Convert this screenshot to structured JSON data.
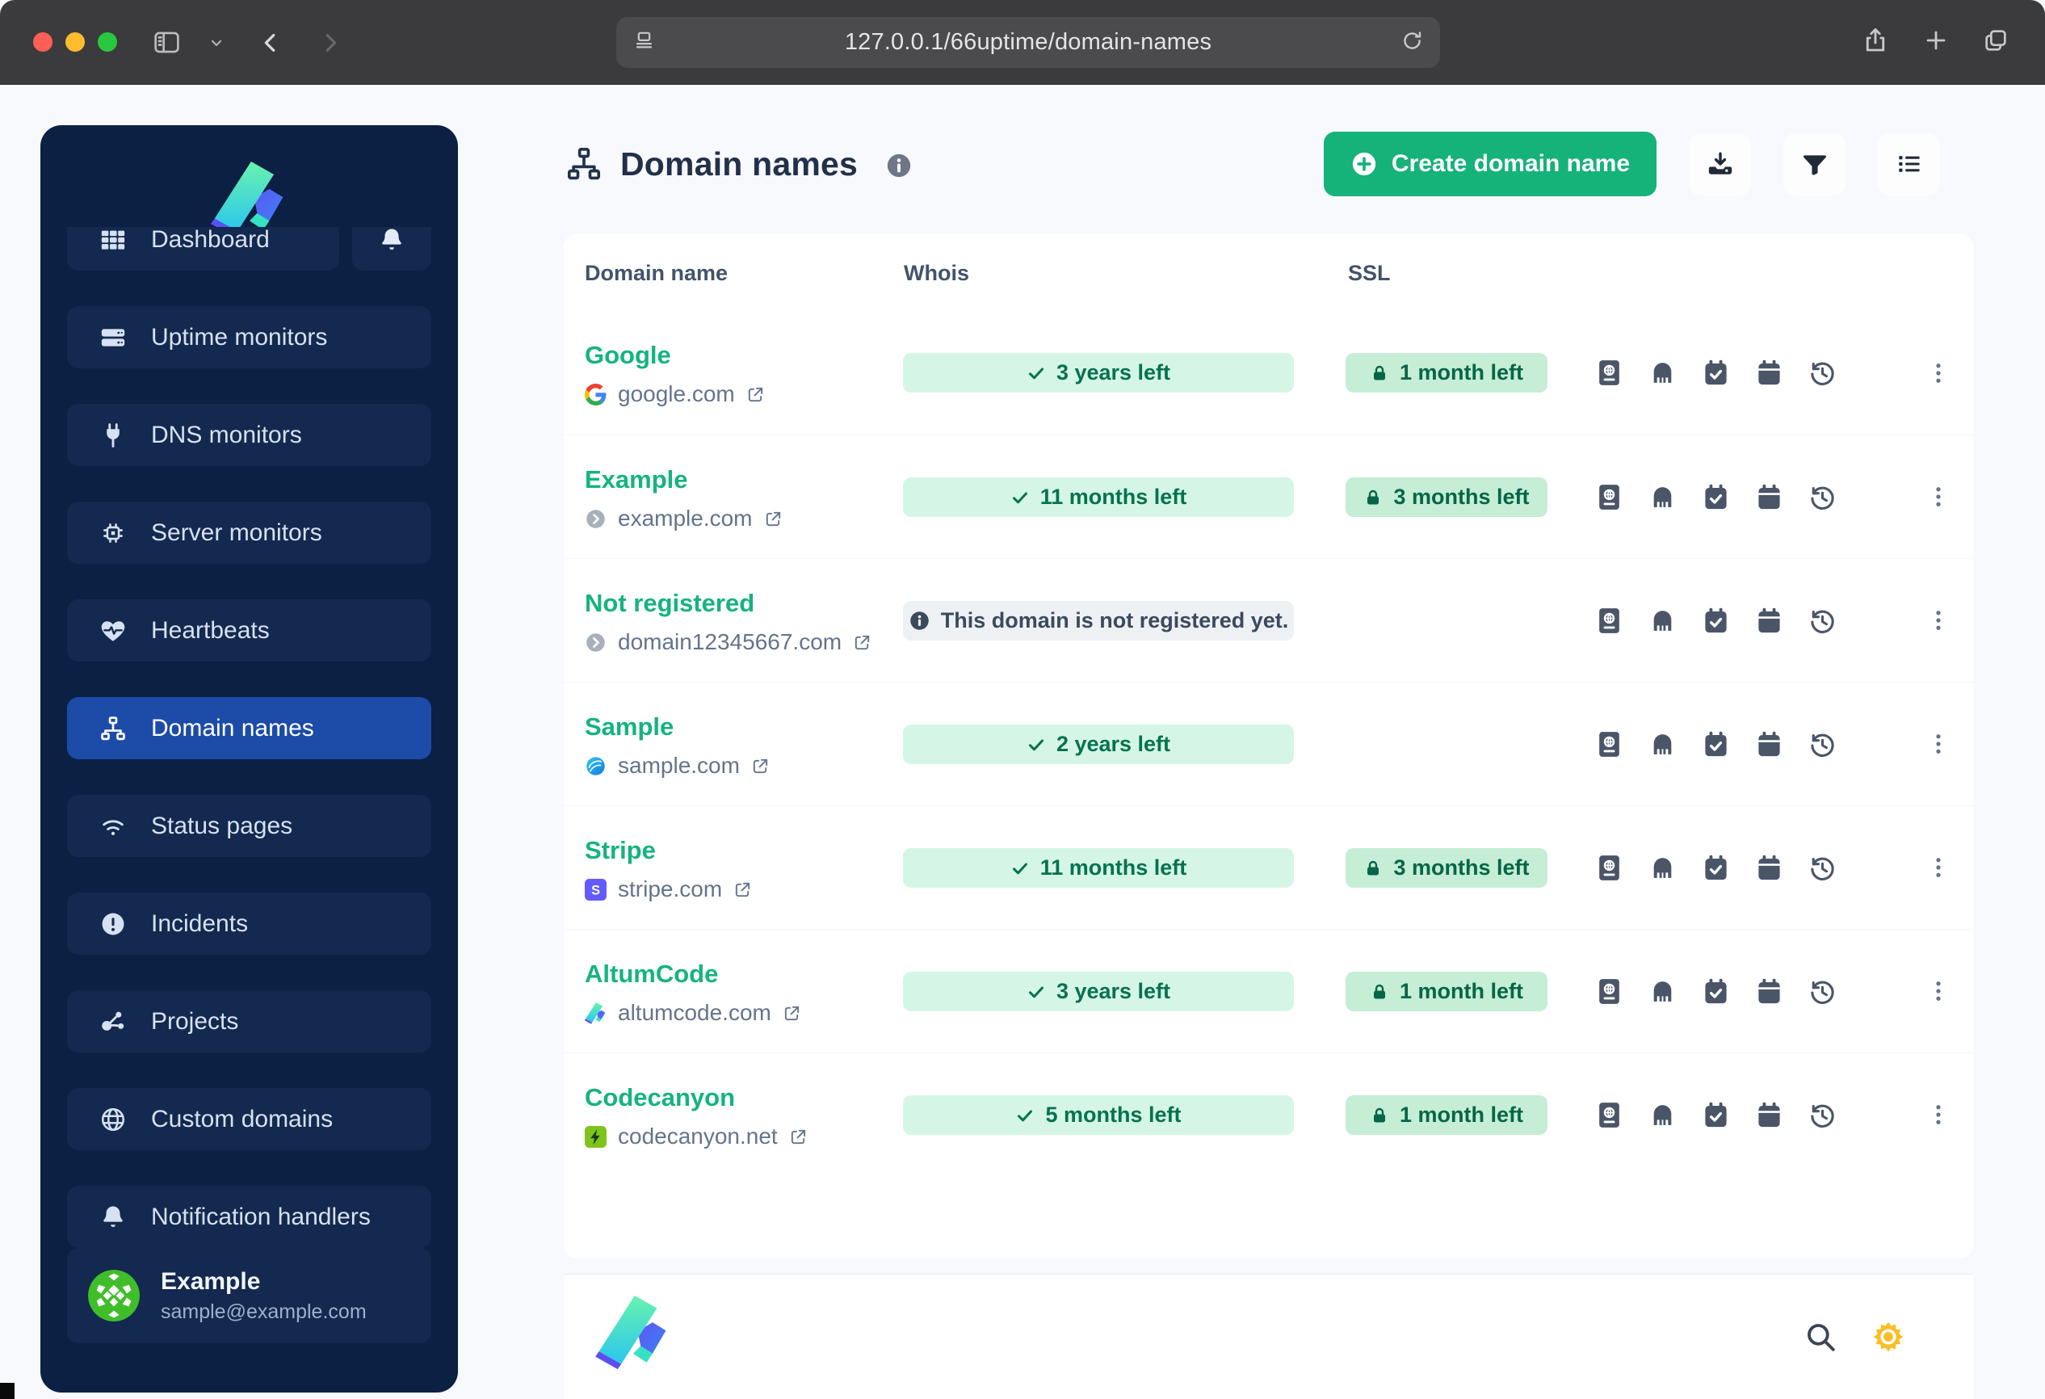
{
  "browser": {
    "url": "127.0.0.1/66uptime/domain-names"
  },
  "sidebar": {
    "items": [
      {
        "label": "Dashboard",
        "icon": "dashboard-grid-icon",
        "clipped": true,
        "bell": true
      },
      {
        "label": "Uptime monitors",
        "icon": "server-stack-icon"
      },
      {
        "label": "DNS monitors",
        "icon": "plug-icon"
      },
      {
        "label": "Server monitors",
        "icon": "chip-icon"
      },
      {
        "label": "Heartbeats",
        "icon": "heart-pulse-icon"
      },
      {
        "label": "Domain names",
        "icon": "sitemap-icon",
        "active": true
      },
      {
        "label": "Status pages",
        "icon": "signal-icon"
      },
      {
        "label": "Incidents",
        "icon": "exclamation-circle-icon"
      },
      {
        "label": "Projects",
        "icon": "share-nodes-icon"
      },
      {
        "label": "Custom domains",
        "icon": "globe-icon"
      },
      {
        "label": "Notification handlers",
        "icon": "bell-icon"
      }
    ],
    "user": {
      "name": "Example",
      "email": "sample@example.com"
    }
  },
  "header": {
    "title": "Domain names",
    "create_button_label": "Create domain name",
    "toolbar_icons": [
      "download-icon",
      "filter-icon",
      "list-icon"
    ]
  },
  "table": {
    "columns": [
      "Domain name",
      "Whois",
      "SSL"
    ],
    "row_actions": [
      "whois-passport-icon",
      "nameservers-icon",
      "calendar-check-icon",
      "calendar-icon",
      "history-icon"
    ],
    "rows": [
      {
        "name": "Google",
        "domain": "google.com",
        "favicon": "google-favicon",
        "whois": "3 years left",
        "ssl": "1 month left"
      },
      {
        "name": "Example",
        "domain": "example.com",
        "favicon": "generic-favicon",
        "whois": "11 months left",
        "ssl": "3 months left"
      },
      {
        "name": "Not registered",
        "domain": "domain12345667.com",
        "favicon": "generic-favicon",
        "whois_info": "This domain is not registered yet."
      },
      {
        "name": "Sample",
        "domain": "sample.com",
        "favicon": "sample-favicon",
        "whois": "2 years left"
      },
      {
        "name": "Stripe",
        "domain": "stripe.com",
        "favicon": "stripe-favicon",
        "whois": "11 months left",
        "ssl": "3 months left"
      },
      {
        "name": "AltumCode",
        "domain": "altumcode.com",
        "favicon": "altumcode-favicon",
        "whois": "3 years left",
        "ssl": "1 month left"
      },
      {
        "name": "Codecanyon",
        "domain": "codecanyon.net",
        "favicon": "codecanyon-favicon",
        "whois": "5 months left",
        "ssl": "1 month left"
      }
    ]
  },
  "footer": {
    "icons": [
      "search-icon",
      "sun-icon"
    ]
  },
  "colors": {
    "accent_green": "#15b279",
    "row_name_green": "#14b47d",
    "badge_whois_bg": "#d5f6e6",
    "badge_whois_text": "#057250",
    "badge_ssl_bg": "#c6edd5",
    "badge_ssl_text": "#056647",
    "info_pill_bg": "#eef1f4",
    "info_pill_text": "#3b4a5f",
    "sidebar_bg": "#0c2044",
    "sidebar_item_bg": "#14294f",
    "sidebar_active_bg": "#1c4ba8",
    "sun_yellow": "#fbbf24",
    "stripe_purple": "#635bff",
    "codecanyon_green": "#7ec41c"
  }
}
